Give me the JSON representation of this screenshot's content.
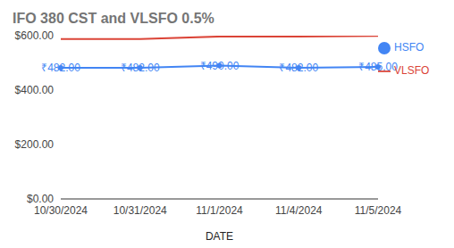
{
  "chart_data": {
    "type": "line",
    "title": "IFO 380 CST and VLSFO 0.5%",
    "x_label": "DATE",
    "categories": [
      "10/30/2024",
      "10/31/2024",
      "11/1/2024",
      "11/4/2024",
      "11/5/2024"
    ],
    "series": [
      {
        "name": "HSFO",
        "color": "#4285f4",
        "marker": "circle",
        "values": [
          482,
          482,
          490,
          482,
          485
        ],
        "data_labels": true,
        "value_labels": [
          "₹482.00",
          "₹482.00",
          "₹490.00",
          "₹482.00",
          "₹485.00"
        ]
      },
      {
        "name": "VLSFO",
        "color": "#db4437",
        "marker": "none",
        "values": [
          588,
          588,
          597,
          597,
          599
        ]
      }
    ],
    "ylim": [
      0,
      600
    ],
    "yticks": [
      {
        "value": 0,
        "label": "$0.00"
      },
      {
        "value": 200,
        "label": "$200.00"
      },
      {
        "value": 400,
        "label": "$400.00"
      },
      {
        "value": 600,
        "label": "$600.00"
      }
    ],
    "grid": false,
    "legend": "right"
  }
}
